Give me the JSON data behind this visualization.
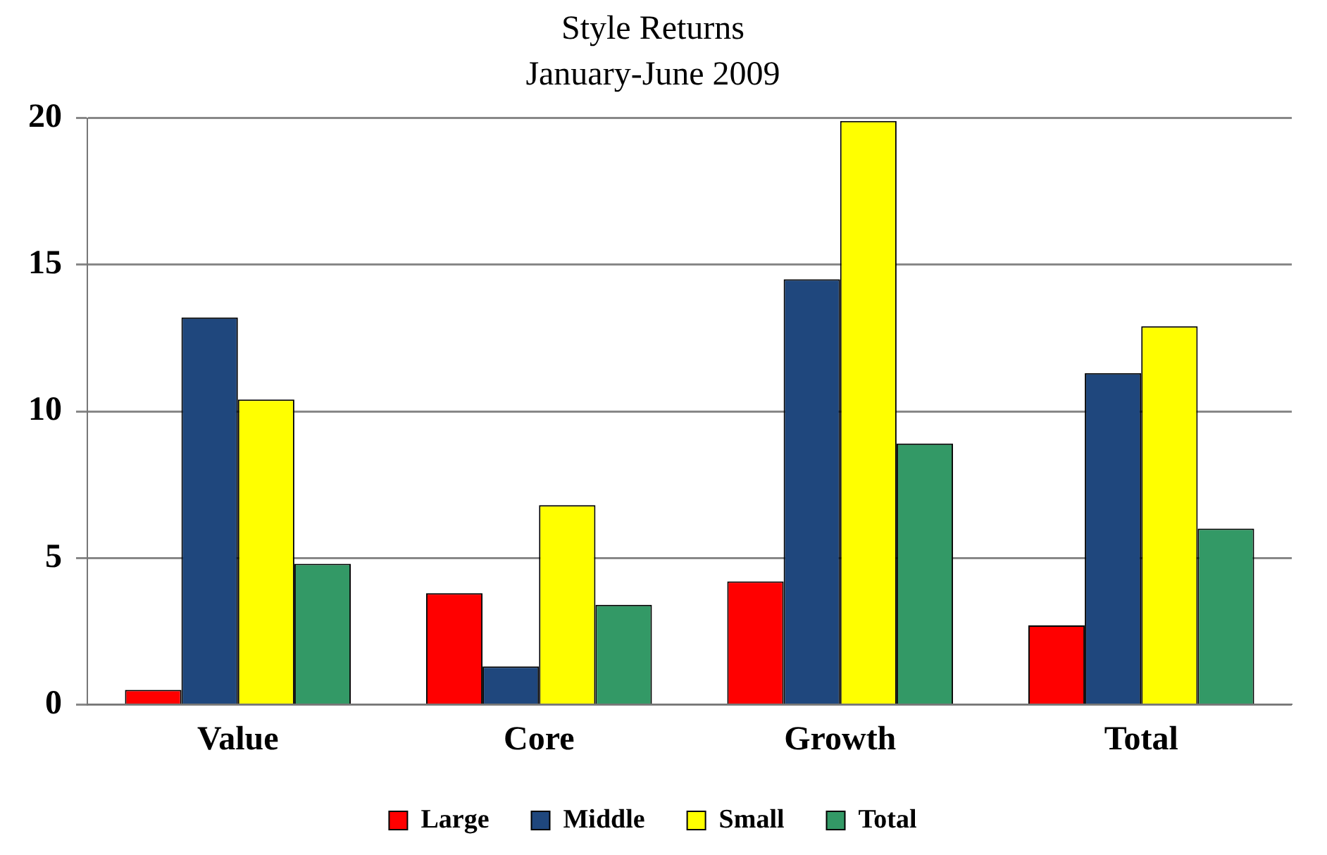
{
  "chart_data": {
    "type": "bar",
    "title": "Style Returns",
    "subtitle": "January-June 2009",
    "categories": [
      "Value",
      "Core",
      "Growth",
      "Total"
    ],
    "series": [
      {
        "name": "Large",
        "color": "#ff0000",
        "values": [
          0.5,
          3.8,
          4.2,
          2.7
        ]
      },
      {
        "name": "Middle",
        "color": "#1f477d",
        "values": [
          13.2,
          1.3,
          14.5,
          11.3
        ]
      },
      {
        "name": "Small",
        "color": "#ffff00",
        "values": [
          10.4,
          6.8,
          19.9,
          12.9
        ]
      },
      {
        "name": "Total",
        "color": "#339966",
        "values": [
          4.8,
          3.4,
          8.9,
          6.0
        ]
      }
    ],
    "ylim": [
      0,
      20
    ],
    "yticks": [
      0,
      5,
      10,
      15,
      20
    ],
    "grid": "y",
    "legend": "bottom"
  }
}
